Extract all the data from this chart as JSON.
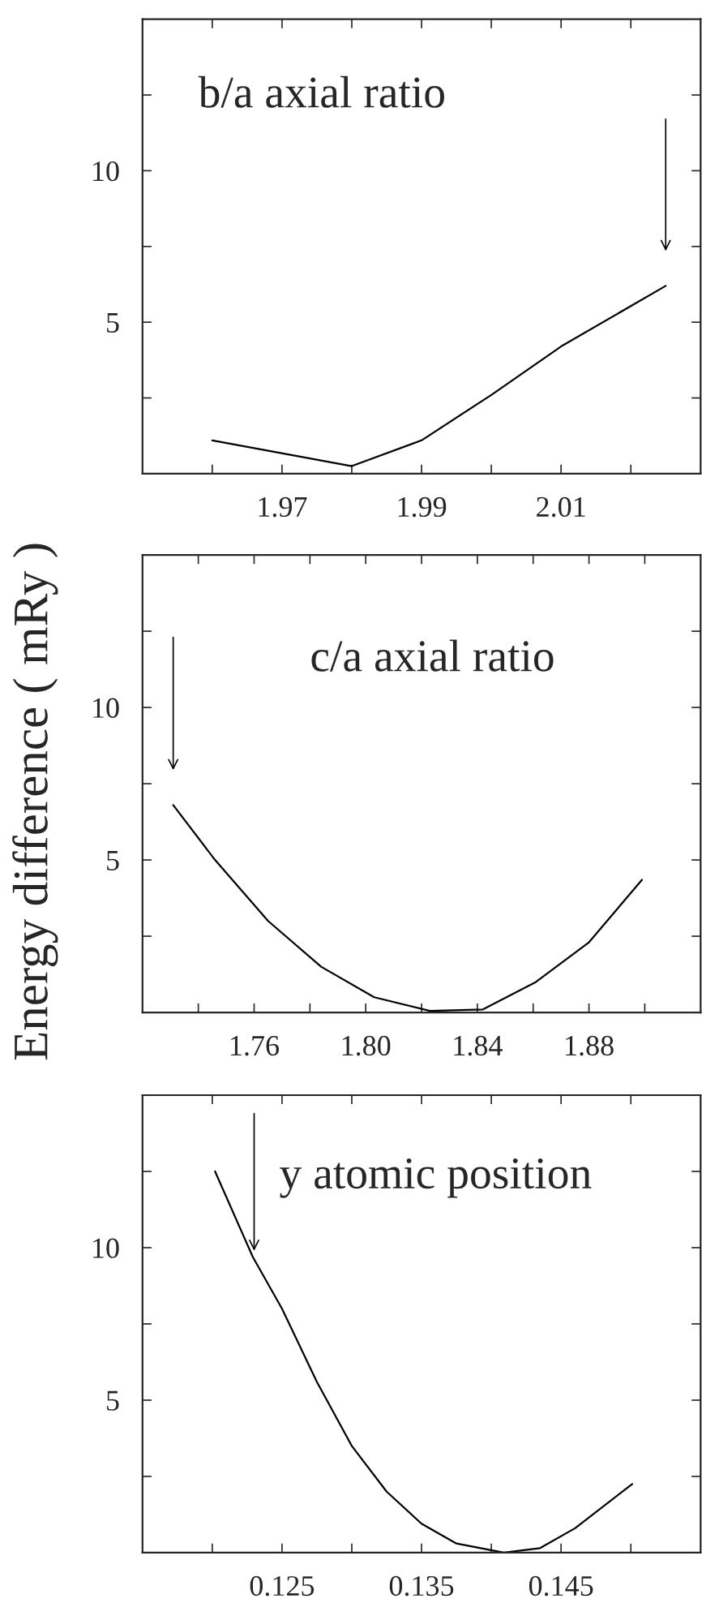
{
  "chart_data": [
    {
      "type": "line",
      "ylabel": "Energy difference ( mRy )",
      "annotations": [
        "b/a axial ratio"
      ],
      "x": [
        1.96,
        1.98,
        1.99,
        2.0,
        2.01,
        2.025
      ],
      "series": [
        {
          "color": "#000000",
          "values": [
            1.1,
            0.25,
            1.1,
            2.6,
            4.2,
            6.2
          ]
        }
      ],
      "xlim": [
        1.95,
        2.03
      ],
      "ylim": [
        0,
        15
      ],
      "xticks": [
        {
          "value": 1.96,
          "label": null
        },
        1.97,
        {
          "value": 1.98,
          "label": null
        },
        1.99,
        {
          "value": 2.0,
          "label": null
        },
        2.01,
        {
          "value": 2.02,
          "label": null
        }
      ],
      "yticks": [
        {
          "value": 2.5,
          "label": null
        },
        5,
        {
          "value": 7.5,
          "label": null
        },
        10,
        {
          "value": 12.5,
          "label": null
        }
      ]
    },
    {
      "type": "line",
      "annotations": [
        "c/a axial ratio"
      ],
      "x": [
        1.731,
        1.746,
        1.765,
        1.784,
        1.803,
        1.823,
        1.842,
        1.861,
        1.88,
        1.899
      ],
      "series": [
        {
          "color": "#000000",
          "values": [
            6.8,
            5.0,
            3.0,
            1.5,
            0.5,
            0.05,
            0.1,
            1.0,
            2.3,
            4.35
          ]
        }
      ],
      "xlim": [
        1.72,
        1.92
      ],
      "ylim": [
        0,
        15
      ],
      "xticks": [
        {
          "value": 1.74,
          "label": null
        },
        {
          "value": 1.76,
          "label": "1.76"
        },
        {
          "value": 1.78,
          "label": null
        },
        {
          "value": 1.8,
          "label": "1.80"
        },
        {
          "value": 1.82,
          "label": null
        },
        {
          "value": 1.84,
          "label": "1.84"
        },
        {
          "value": 1.86,
          "label": null
        },
        {
          "value": 1.88,
          "label": "1.88"
        },
        {
          "value": 1.9,
          "label": null
        }
      ],
      "yticks": [
        {
          "value": 2.5,
          "label": null
        },
        5,
        {
          "value": 7.5,
          "label": null
        },
        10,
        {
          "value": 12.5,
          "label": null
        }
      ]
    },
    {
      "type": "line",
      "annotations": [
        "y atomic position"
      ],
      "x": [
        0.1202,
        0.1229,
        0.125,
        0.1275,
        0.13,
        0.1325,
        0.135,
        0.1375,
        0.1409,
        0.1435,
        0.146,
        0.1501
      ],
      "series": [
        {
          "color": "#000000",
          "values": [
            12.5,
            9.7,
            8.0,
            5.6,
            3.5,
            2.0,
            0.95,
            0.3,
            0.0,
            0.15,
            0.8,
            2.25
          ]
        }
      ],
      "xlim": [
        0.115,
        0.155
      ],
      "ylim": [
        0,
        15
      ],
      "xticks": [
        {
          "value": 0.12,
          "label": null
        },
        0.125,
        {
          "value": 0.13,
          "label": null
        },
        0.135,
        {
          "value": 0.14,
          "label": null
        },
        0.145,
        {
          "value": 0.15,
          "label": null
        }
      ],
      "yticks": [
        {
          "value": 2.5,
          "label": null
        },
        5,
        {
          "value": 7.5,
          "label": null
        },
        10,
        {
          "value": 12.5,
          "label": null
        }
      ]
    }
  ]
}
